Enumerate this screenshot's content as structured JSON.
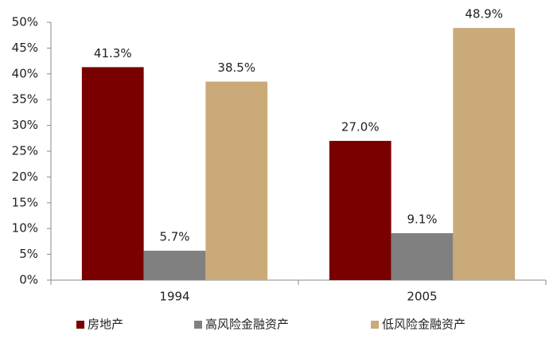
{
  "chart_data": {
    "type": "bar",
    "categories": [
      "1994",
      "2005"
    ],
    "series": [
      {
        "name": "房地产",
        "color": "#7a0000",
        "values": [
          41.3,
          27.0
        ],
        "value_labels": [
          "41.3%",
          "27.0%"
        ]
      },
      {
        "name": "高风险金融资产",
        "color": "#808080",
        "values": [
          5.7,
          9.1
        ],
        "value_labels": [
          "5.7%",
          "9.1%"
        ]
      },
      {
        "name": "低风险金融资产",
        "color": "#c9aa78",
        "values": [
          38.5,
          48.9
        ],
        "value_labels": [
          "38.5%",
          "48.9%"
        ]
      }
    ],
    "ylim": [
      0,
      50
    ],
    "yticks": [
      {
        "value": 0,
        "label": "0%"
      },
      {
        "value": 5,
        "label": "5%"
      },
      {
        "value": 10,
        "label": "10%"
      },
      {
        "value": 15,
        "label": "15%"
      },
      {
        "value": 20,
        "label": "20%"
      },
      {
        "value": 25,
        "label": "25%"
      },
      {
        "value": 30,
        "label": "30%"
      },
      {
        "value": 35,
        "label": "35%"
      },
      {
        "value": 40,
        "label": "40%"
      },
      {
        "value": 45,
        "label": "45%"
      },
      {
        "value": 50,
        "label": "50%"
      }
    ],
    "grid": false,
    "legend": "bottom"
  }
}
